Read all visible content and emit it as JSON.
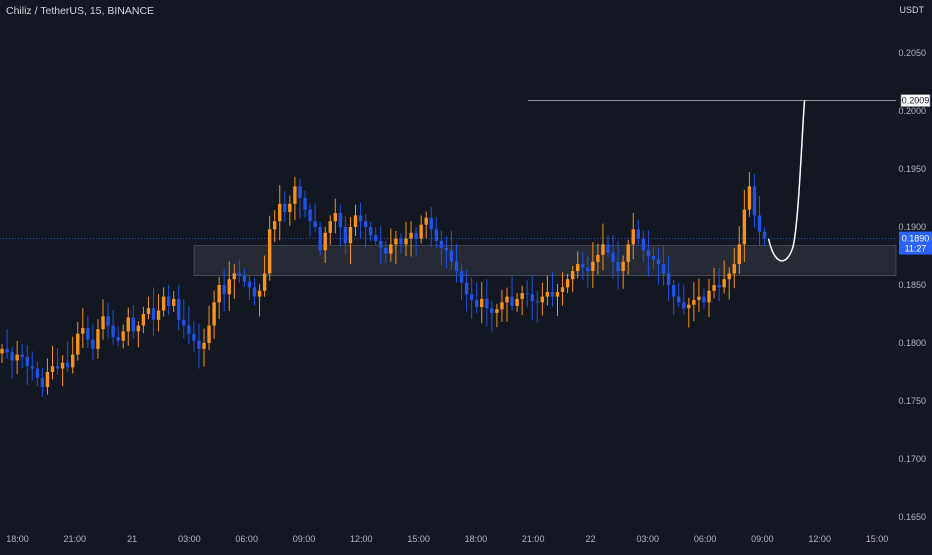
{
  "chart_title": "Chiliz / TetherUS, 15, BINANCE",
  "currency": "USDT",
  "colors": {
    "background": "#131722",
    "up": "#f7931a",
    "down": "#1e53e5",
    "price_line": "#2962ff",
    "zone": "#2a2e39"
  },
  "price_axis": {
    "ticks": [
      "0.2050",
      "0.2000",
      "0.1950",
      "0.1900",
      "0.1850",
      "0.1800",
      "0.1750",
      "0.1700",
      "0.1650"
    ],
    "target_label": "0.2009",
    "current_price_label": "0.1890",
    "countdown_label": "11:27"
  },
  "time_axis": {
    "ticks": [
      "18:00",
      "21:00",
      "21",
      "03:00",
      "06:00",
      "09:00",
      "12:00",
      "15:00",
      "18:00",
      "21:00",
      "22",
      "03:00",
      "06:00",
      "09:00",
      "12:00",
      "15:00"
    ]
  },
  "chart_data": {
    "type": "candlestick",
    "symbol": "Chiliz / TetherUS",
    "interval": "15",
    "exchange": "BINANCE",
    "ylim": [
      0.165,
      0.207
    ],
    "current_price": 0.189,
    "target_price": 0.2009,
    "support_zone": [
      0.1858,
      0.1884
    ],
    "close_series": [
      0.1795,
      0.1792,
      0.1785,
      0.179,
      0.1788,
      0.178,
      0.1778,
      0.177,
      0.1762,
      0.1775,
      0.178,
      0.1778,
      0.1783,
      0.1779,
      0.179,
      0.1808,
      0.1813,
      0.1803,
      0.1795,
      0.1812,
      0.1823,
      0.1815,
      0.1805,
      0.1802,
      0.181,
      0.1822,
      0.181,
      0.1815,
      0.1825,
      0.183,
      0.182,
      0.1828,
      0.184,
      0.1832,
      0.1838,
      0.182,
      0.1815,
      0.1808,
      0.1802,
      0.1795,
      0.18,
      0.1815,
      0.1835,
      0.185,
      0.1842,
      0.1855,
      0.186,
      0.1858,
      0.1853,
      0.1848,
      0.184,
      0.1845,
      0.186,
      0.1898,
      0.1905,
      0.192,
      0.1913,
      0.192,
      0.1935,
      0.1925,
      0.1915,
      0.1905,
      0.19,
      0.188,
      0.1895,
      0.1905,
      0.1912,
      0.19,
      0.1886,
      0.19,
      0.191,
      0.1905,
      0.19,
      0.1893,
      0.1888,
      0.1882,
      0.1877,
      0.1885,
      0.189,
      0.1885,
      0.189,
      0.1895,
      0.189,
      0.1902,
      0.1908,
      0.1898,
      0.1888,
      0.1882,
      0.188,
      0.187,
      0.1862,
      0.1852,
      0.1842,
      0.1837,
      0.1831,
      0.1838,
      0.183,
      0.1826,
      0.1829,
      0.1835,
      0.184,
      0.1832,
      0.1838,
      0.1843,
      0.1842,
      0.1836,
      0.1835,
      0.184,
      0.1844,
      0.184,
      0.1844,
      0.1848,
      0.1855,
      0.1862,
      0.1868,
      0.1865,
      0.1862,
      0.187,
      0.1876,
      0.1885,
      0.1878,
      0.187,
      0.1862,
      0.187,
      0.1885,
      0.1898,
      0.189,
      0.188,
      0.1875,
      0.1872,
      0.1868,
      0.186,
      0.185,
      0.184,
      0.1835,
      0.183,
      0.1833,
      0.1837,
      0.184,
      0.1835,
      0.1845,
      0.185,
      0.1848,
      0.1855,
      0.186,
      0.1868,
      0.1885,
      0.1915,
      0.1935,
      0.191,
      0.1896,
      0.189
    ],
    "projection": {
      "type": "curve",
      "from_price": 0.189,
      "low": 0.1873,
      "to_price": 0.2009
    }
  }
}
